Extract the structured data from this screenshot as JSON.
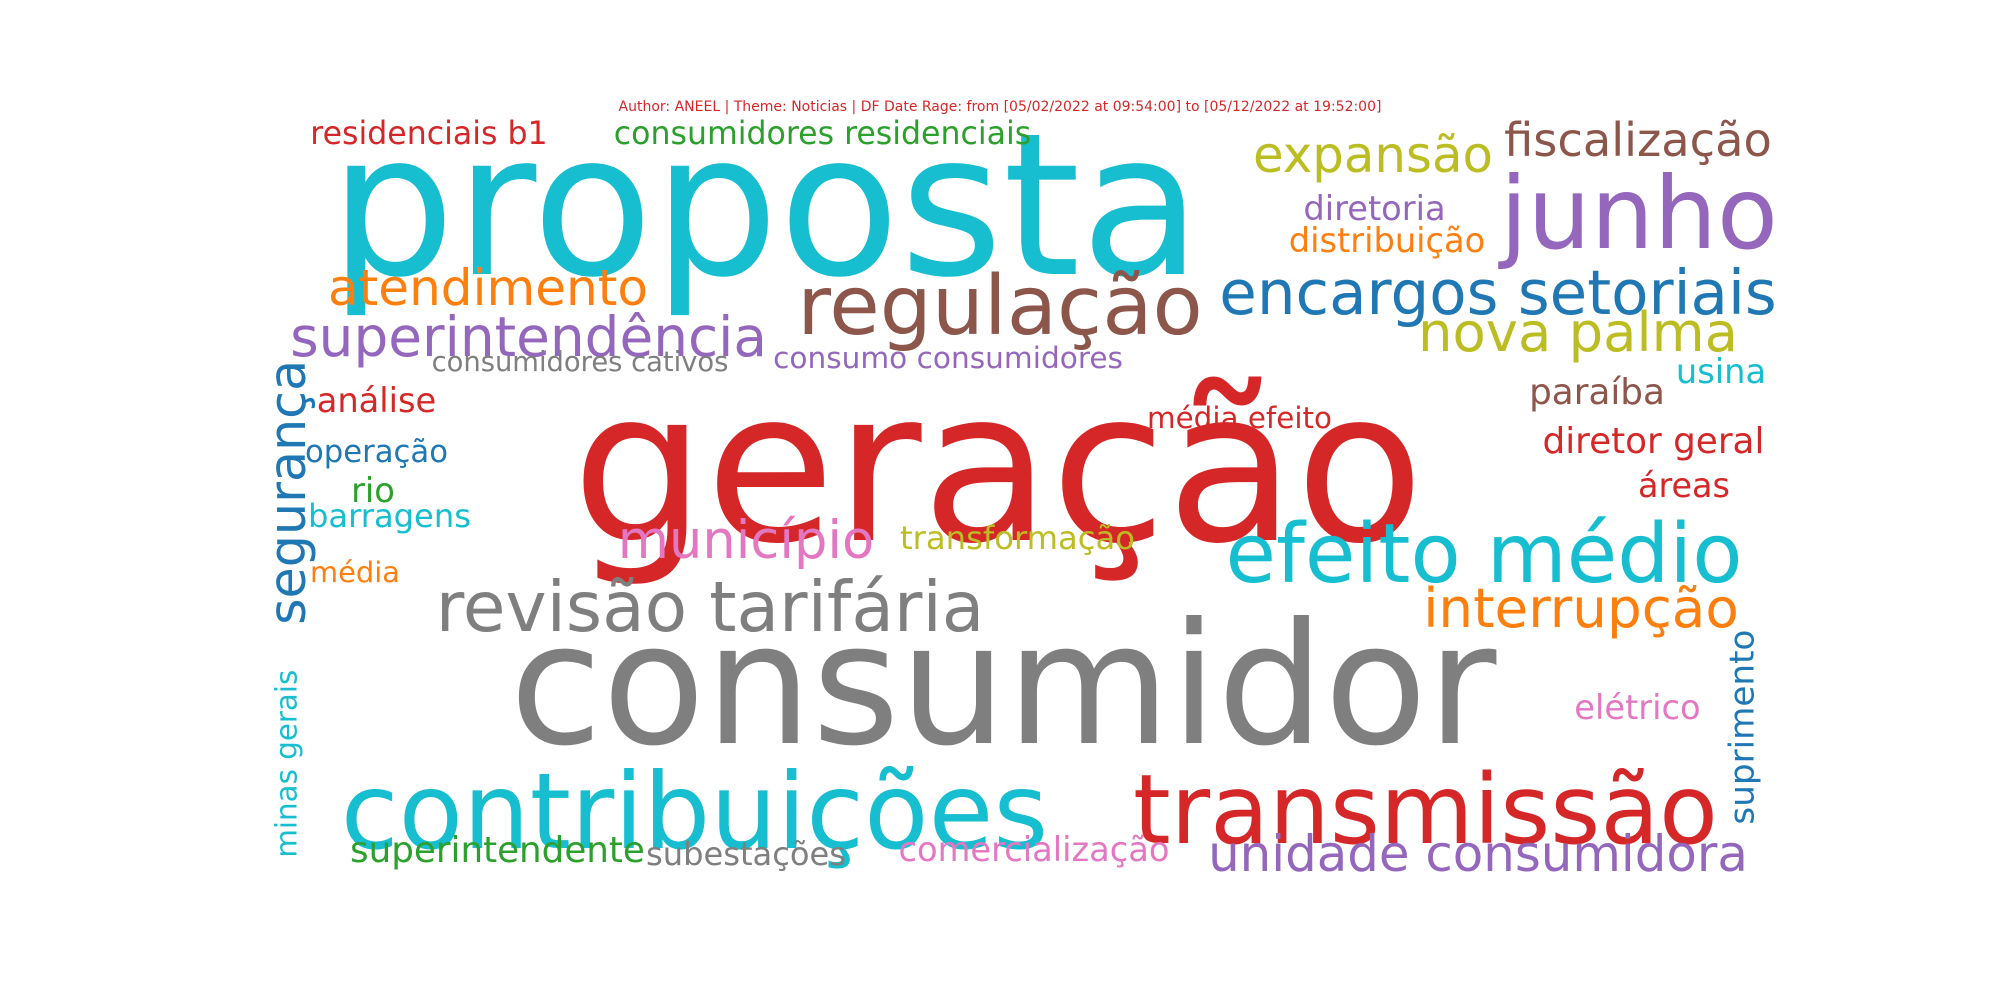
{
  "caption": "Author: ANEEL | Theme: Noticias | DF Date Rage: from [05/02/2022 at 09:54:00] to [05/12/2022 at 19:52:00]",
  "words": [
    {
      "text": "geração",
      "color": "#d62728"
    },
    {
      "text": "consumidor",
      "color": "#7f7f7f"
    },
    {
      "text": "proposta",
      "color": "#17becf"
    },
    {
      "text": "regulação",
      "color": "#8c564b"
    },
    {
      "text": "junho",
      "color": "#9467bd"
    },
    {
      "text": "transmissão",
      "color": "#d62728"
    },
    {
      "text": "contribuições",
      "color": "#17becf"
    },
    {
      "text": "efeito médio",
      "color": "#17becf"
    },
    {
      "text": "revisão tarifária",
      "color": "#7f7f7f"
    },
    {
      "text": "encargos setoriais",
      "color": "#1f77b4"
    },
    {
      "text": "superintendência",
      "color": "#9467bd"
    },
    {
      "text": "atendimento",
      "color": "#ff7f0e"
    },
    {
      "text": "nova palma",
      "color": "#bcbd22"
    },
    {
      "text": "expansão",
      "color": "#bcbd22"
    },
    {
      "text": "fiscalização",
      "color": "#8c564b"
    },
    {
      "text": "unidade consumidora",
      "color": "#9467bd"
    },
    {
      "text": "interrupção",
      "color": "#ff7f0e"
    },
    {
      "text": "município",
      "color": "#e377c2"
    },
    {
      "text": "segurança",
      "color": "#1f77b4"
    },
    {
      "text": "consumidores residenciais",
      "color": "#2ca02c"
    },
    {
      "text": "residenciais b1",
      "color": "#d62728"
    },
    {
      "text": "diretoria",
      "color": "#9467bd"
    },
    {
      "text": "distribuição",
      "color": "#ff7f0e"
    },
    {
      "text": "consumo consumidores",
      "color": "#9467bd"
    },
    {
      "text": "consumidores cativos",
      "color": "#7f7f7f"
    },
    {
      "text": "paraíba",
      "color": "#8c564b"
    },
    {
      "text": "usina",
      "color": "#17becf"
    },
    {
      "text": "diretor geral",
      "color": "#d62728"
    },
    {
      "text": "áreas",
      "color": "#d62728"
    },
    {
      "text": "média efeito",
      "color": "#d62728"
    },
    {
      "text": "análise",
      "color": "#d62728"
    },
    {
      "text": "operação",
      "color": "#1f77b4"
    },
    {
      "text": "rio",
      "color": "#2ca02c"
    },
    {
      "text": "barragens",
      "color": "#17becf"
    },
    {
      "text": "média",
      "color": "#ff7f0e"
    },
    {
      "text": "transformação",
      "color": "#bcbd22"
    },
    {
      "text": "elétrico",
      "color": "#e377c2"
    },
    {
      "text": "suprimento",
      "color": "#1f77b4"
    },
    {
      "text": "minas gerais",
      "color": "#17becf"
    },
    {
      "text": "superintendente",
      "color": "#2ca02c"
    },
    {
      "text": "subestações",
      "color": "#7f7f7f"
    },
    {
      "text": "comercialização",
      "color": "#e377c2"
    }
  ]
}
